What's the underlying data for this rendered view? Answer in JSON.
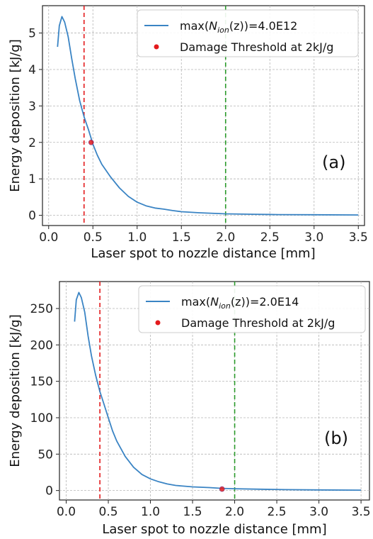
{
  "chart_data": [
    {
      "type": "line",
      "panel_label": "(a)",
      "xlabel": "Laser spot to nozzle distance [mm]",
      "ylabel": "Energy deposition [kJ/g]",
      "xlim": [
        -0.07,
        3.57
      ],
      "ylim": [
        -0.28,
        5.75
      ],
      "xticks": [
        "0.0",
        "0.5",
        "1.0",
        "1.5",
        "2.0",
        "2.5",
        "3.0",
        "3.5"
      ],
      "xtick_values": [
        0.0,
        0.5,
        1.0,
        1.5,
        2.0,
        2.5,
        3.0,
        3.5
      ],
      "yticks": [
        "0",
        "1",
        "2",
        "3",
        "4",
        "5"
      ],
      "ytick_values": [
        0,
        1,
        2,
        3,
        4,
        5
      ],
      "grid": true,
      "legend_position": "top-right",
      "series": [
        {
          "name_prefix": "max(",
          "name_math": "N",
          "name_sub": "ion",
          "name_suffix": "(z))=4.0E12",
          "color": "#3a84c4",
          "x": [
            0.1,
            0.12,
            0.15,
            0.18,
            0.22,
            0.26,
            0.3,
            0.35,
            0.4,
            0.45,
            0.5,
            0.55,
            0.6,
            0.7,
            0.8,
            0.9,
            1.0,
            1.1,
            1.2,
            1.3,
            1.4,
            1.5,
            1.7,
            2.0,
            2.3,
            2.6,
            3.0,
            3.5
          ],
          "y": [
            4.62,
            5.2,
            5.45,
            5.3,
            4.9,
            4.3,
            3.75,
            3.15,
            2.7,
            2.35,
            1.95,
            1.65,
            1.4,
            1.05,
            0.75,
            0.52,
            0.36,
            0.26,
            0.2,
            0.17,
            0.13,
            0.1,
            0.07,
            0.04,
            0.03,
            0.02,
            0.015,
            0.01
          ]
        }
      ],
      "threshold_point": {
        "label": "Damage Threshold at 2kJ/g",
        "x": 0.48,
        "y": 2.0,
        "color": "#e31a1c"
      },
      "vlines": [
        {
          "x": 0.4,
          "color": "#e31a1c"
        },
        {
          "x": 2.0,
          "color": "#2a9a2a"
        }
      ]
    },
    {
      "type": "line",
      "panel_label": "(b)",
      "xlabel": "Laser spot to nozzle distance [mm]",
      "ylabel": "Energy deposition [kJ/g]",
      "xlim": [
        -0.08,
        3.6
      ],
      "ylim": [
        -13,
        287
      ],
      "xticks": [
        "0.0",
        "0.5",
        "1.0",
        "1.5",
        "2.0",
        "2.5",
        "3.0",
        "3.5"
      ],
      "xtick_values": [
        0.0,
        0.5,
        1.0,
        1.5,
        2.0,
        2.5,
        3.0,
        3.5
      ],
      "yticks": [
        "0",
        "50",
        "100",
        "150",
        "200",
        "250"
      ],
      "ytick_values": [
        0,
        50,
        100,
        150,
        200,
        250
      ],
      "grid": true,
      "legend_position": "top-right",
      "series": [
        {
          "name_prefix": "max(",
          "name_math": "N",
          "name_sub": "ion",
          "name_suffix": "(z))=2.0E14",
          "color": "#3a84c4",
          "x": [
            0.1,
            0.12,
            0.15,
            0.18,
            0.22,
            0.26,
            0.3,
            0.35,
            0.4,
            0.45,
            0.5,
            0.55,
            0.6,
            0.7,
            0.8,
            0.9,
            1.0,
            1.1,
            1.2,
            1.3,
            1.4,
            1.5,
            1.7,
            1.85,
            2.0,
            2.3,
            2.6,
            3.0,
            3.5
          ],
          "y": [
            232,
            262,
            272,
            265,
            245,
            212,
            185,
            158,
            136,
            118,
            100,
            82,
            68,
            47,
            32,
            22,
            16,
            12,
            9,
            7,
            6,
            5,
            4,
            3,
            2.5,
            1.8,
            1.2,
            0.8,
            0.5
          ]
        }
      ],
      "threshold_point": {
        "label": "Damage Threshold at 2kJ/g",
        "x": 1.85,
        "y": 2.0,
        "color": "#e31a1c"
      },
      "vlines": [
        {
          "x": 0.4,
          "color": "#e31a1c"
        },
        {
          "x": 2.0,
          "color": "#2a9a2a"
        }
      ]
    }
  ]
}
